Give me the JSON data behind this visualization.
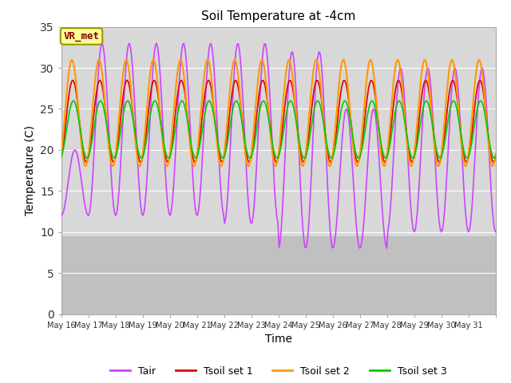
{
  "title": "Soil Temperature at -4cm",
  "xlabel": "Time",
  "ylabel": "Temperature (C)",
  "ylim": [
    0,
    35
  ],
  "yticks": [
    0,
    5,
    10,
    15,
    20,
    25,
    30,
    35
  ],
  "plot_bg_upper": "#d8d8d8",
  "plot_bg_lower": "#c8c8c8",
  "grid_color": "#ffffff",
  "annotation_text": "VR_met",
  "annotation_bg": "#ffff99",
  "annotation_border": "#999900",
  "annotation_text_color": "#8B0000",
  "colors": {
    "Tair": "#cc44ff",
    "Tsoil_set1": "#dd0000",
    "Tsoil_set2": "#ff9900",
    "Tsoil_set3": "#00cc00"
  },
  "legend_labels": [
    "Tair",
    "Tsoil set 1",
    "Tsoil set 2",
    "Tsoil set 3"
  ],
  "x_tick_labels": [
    "May 16",
    "May 17",
    "May 18",
    "May 19",
    "May 20",
    "May 21",
    "May 22",
    "May 23",
    "May 24",
    "May 25",
    "May 26",
    "May 27",
    "May 28",
    "May 29",
    "May 30",
    "May 31"
  ],
  "n_days": 16,
  "points_per_day": 24
}
